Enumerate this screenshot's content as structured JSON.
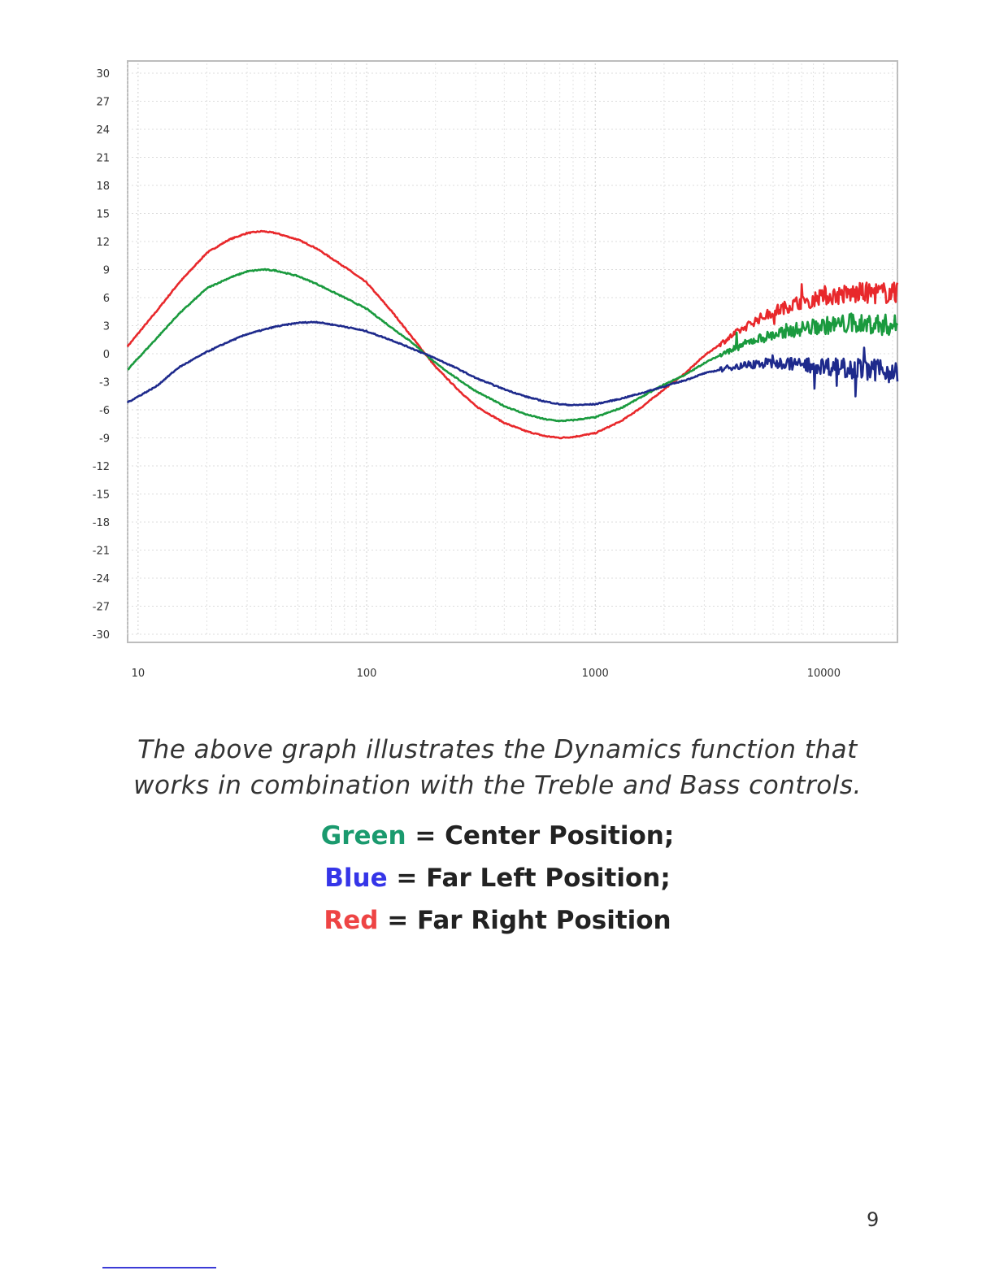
{
  "chart_data": {
    "type": "line",
    "x_scale": "log",
    "xlim": [
      9,
      21000
    ],
    "ylim": [
      -30,
      30
    ],
    "x_ticks": [
      "10",
      "100",
      "1000",
      "10000"
    ],
    "y_ticks": [
      "30",
      "27",
      "24",
      "21",
      "18",
      "15",
      "12",
      "9",
      "6",
      "3",
      "0",
      "-3",
      "-6",
      "-9",
      "-12",
      "-15",
      "-18",
      "-21",
      "-24",
      "-27",
      "-30"
    ],
    "grid": true,
    "series": [
      {
        "color": "#e8282b",
        "noisy_from": 3500,
        "points": [
          [
            9,
            0.8
          ],
          [
            12,
            4.5
          ],
          [
            15,
            7.5
          ],
          [
            20,
            10.8
          ],
          [
            25,
            12.2
          ],
          [
            30,
            12.9
          ],
          [
            35,
            13.1
          ],
          [
            40,
            12.9
          ],
          [
            50,
            12.2
          ],
          [
            60,
            11.3
          ],
          [
            80,
            9.3
          ],
          [
            100,
            7.6
          ],
          [
            130,
            4.4
          ],
          [
            160,
            1.6
          ],
          [
            200,
            -1.4
          ],
          [
            250,
            -3.8
          ],
          [
            300,
            -5.6
          ],
          [
            400,
            -7.4
          ],
          [
            500,
            -8.3
          ],
          [
            600,
            -8.8
          ],
          [
            700,
            -9.0
          ],
          [
            800,
            -8.9
          ],
          [
            1000,
            -8.5
          ],
          [
            1300,
            -7.2
          ],
          [
            1600,
            -5.7
          ],
          [
            2000,
            -3.8
          ],
          [
            2500,
            -2.0
          ],
          [
            3000,
            -0.2
          ],
          [
            4000,
            2.0
          ],
          [
            5000,
            3.5
          ],
          [
            6000,
            4.5
          ],
          [
            8000,
            5.6
          ],
          [
            10000,
            6.1
          ],
          [
            13000,
            6.4
          ],
          [
            16000,
            6.5
          ],
          [
            21000,
            6.5
          ]
        ]
      },
      {
        "color": "#1a9a3e",
        "noisy_from": 3500,
        "points": [
          [
            9,
            -1.7
          ],
          [
            12,
            1.6
          ],
          [
            15,
            4.2
          ],
          [
            20,
            7.0
          ],
          [
            25,
            8.1
          ],
          [
            30,
            8.8
          ],
          [
            35,
            9.0
          ],
          [
            40,
            8.9
          ],
          [
            50,
            8.3
          ],
          [
            60,
            7.5
          ],
          [
            80,
            6.0
          ],
          [
            100,
            4.8
          ],
          [
            130,
            2.7
          ],
          [
            160,
            1.1
          ],
          [
            200,
            -1.0
          ],
          [
            250,
            -2.7
          ],
          [
            300,
            -4.0
          ],
          [
            400,
            -5.6
          ],
          [
            500,
            -6.5
          ],
          [
            600,
            -7.0
          ],
          [
            700,
            -7.2
          ],
          [
            800,
            -7.1
          ],
          [
            1000,
            -6.8
          ],
          [
            1300,
            -5.8
          ],
          [
            1600,
            -4.6
          ],
          [
            2000,
            -3.3
          ],
          [
            2500,
            -2.2
          ],
          [
            3000,
            -1.0
          ],
          [
            4000,
            0.5
          ],
          [
            5000,
            1.5
          ],
          [
            6000,
            2.0
          ],
          [
            8000,
            2.7
          ],
          [
            10000,
            3.0
          ],
          [
            13000,
            3.2
          ],
          [
            16000,
            3.2
          ],
          [
            21000,
            3.0
          ]
        ]
      },
      {
        "color": "#1e2a8c",
        "noisy_from": 3500,
        "points": [
          [
            9,
            -5.2
          ],
          [
            12,
            -3.5
          ],
          [
            15,
            -1.5
          ],
          [
            20,
            0.2
          ],
          [
            25,
            1.3
          ],
          [
            30,
            2.1
          ],
          [
            40,
            2.9
          ],
          [
            50,
            3.3
          ],
          [
            60,
            3.4
          ],
          [
            80,
            2.9
          ],
          [
            100,
            2.4
          ],
          [
            130,
            1.4
          ],
          [
            160,
            0.5
          ],
          [
            200,
            -0.5
          ],
          [
            250,
            -1.6
          ],
          [
            300,
            -2.6
          ],
          [
            400,
            -3.8
          ],
          [
            500,
            -4.6
          ],
          [
            600,
            -5.1
          ],
          [
            700,
            -5.4
          ],
          [
            800,
            -5.5
          ],
          [
            1000,
            -5.4
          ],
          [
            1300,
            -4.8
          ],
          [
            1600,
            -4.2
          ],
          [
            2000,
            -3.5
          ],
          [
            2500,
            -2.8
          ],
          [
            3000,
            -2.1
          ],
          [
            4000,
            -1.4
          ],
          [
            5000,
            -1.1
          ],
          [
            6000,
            -1.0
          ],
          [
            8000,
            -1.1
          ],
          [
            10000,
            -1.3
          ],
          [
            13000,
            -1.5
          ],
          [
            16000,
            -1.7
          ],
          [
            21000,
            -2.0
          ]
        ]
      }
    ]
  },
  "caption": {
    "line1": "The above graph illustrates the Dynamics function that",
    "line2": "works in combination with the Treble and Bass controls."
  },
  "legend": [
    {
      "color_word": "Green",
      "color": "#1a9a6e",
      "text": " = Center Position;"
    },
    {
      "color_word": "Blue",
      "color": "#3535e8",
      "text": " = Far Left Position;"
    },
    {
      "color_word": "Red",
      "color": "#ee4444",
      "text": " = Far Right Position"
    }
  ],
  "page_number": "9"
}
